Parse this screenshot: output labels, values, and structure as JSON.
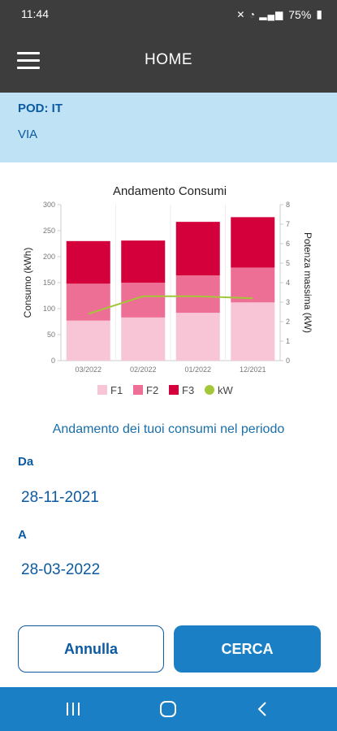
{
  "status_bar": {
    "time": "11:44",
    "battery": "75%",
    "icons": [
      "mute-icon",
      "wifi-icon",
      "signal-icon",
      "battery-icon"
    ]
  },
  "app_bar": {
    "title": "HOME",
    "menu_icon": "hamburger-menu-icon"
  },
  "pod": {
    "label": "POD: IT",
    "address": "VIA"
  },
  "chart_data": {
    "type": "bar",
    "title": "Andamento Consumi",
    "stacked": true,
    "categories": [
      "03/2022",
      "02/2022",
      "01/2022",
      "12/2021"
    ],
    "series": [
      {
        "name": "F1",
        "color": "#f7c5d6",
        "values": [
          77,
          83,
          92,
          112
        ]
      },
      {
        "name": "F2",
        "color": "#ed6f95",
        "values": [
          71,
          67,
          72,
          67
        ]
      },
      {
        "name": "F3",
        "color": "#d4003c",
        "values": [
          82,
          81,
          103,
          97
        ]
      }
    ],
    "line_series": {
      "name": "kW",
      "color": "#a4c639",
      "axis": "right",
      "values": [
        2.4,
        3.3,
        3.3,
        3.2
      ]
    },
    "ylabel": "Consumo (kWh)",
    "ylim": [
      0,
      300
    ],
    "yticks": [
      0,
      50,
      100,
      150,
      200,
      250,
      300
    ],
    "y2label": "Potenza massima (kW)",
    "y2lim": [
      0,
      8
    ],
    "y2ticks": [
      0,
      1,
      2,
      3,
      4,
      5,
      6,
      7,
      8
    ],
    "legend_position": "bottom",
    "grid": false
  },
  "period": {
    "subtitle": "Andamento dei tuoi consumi nel periodo",
    "from_label": "Da",
    "from_value": "28-11-2021",
    "to_label": "A",
    "to_value": "28-03-2022"
  },
  "buttons": {
    "cancel": "Annulla",
    "search": "CERCA"
  },
  "colors": {
    "header": "#3d3d3d",
    "pod_bar": "#bfe3f5",
    "brand_blue": "#0c5aa1",
    "nav_bar": "#1a7fc4"
  }
}
